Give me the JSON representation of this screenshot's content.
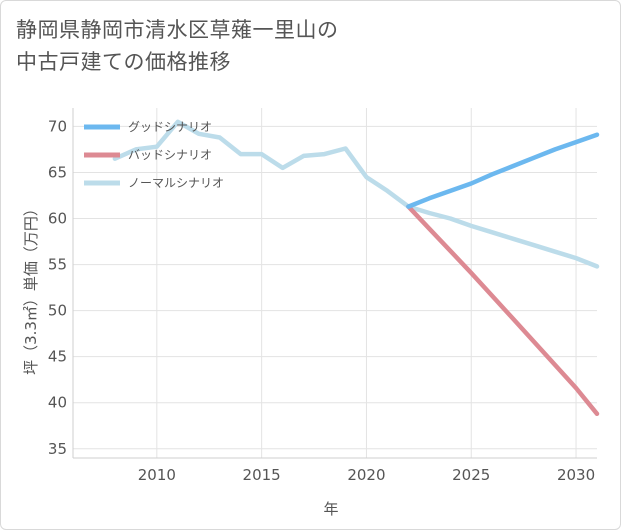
{
  "title_lines": [
    "静岡県静岡市清水区草薙一里山の",
    "中古戸建ての価格推移"
  ],
  "chart_data": {
    "type": "line",
    "xlabel": "年",
    "ylabel": "坪（3.3㎡）単価（万円）",
    "xlim": [
      2006,
      2031
    ],
    "ylim": [
      34,
      72
    ],
    "xticks": [
      2010,
      2015,
      2020,
      2025,
      2030
    ],
    "yticks": [
      35,
      40,
      45,
      50,
      55,
      60,
      65,
      70
    ],
    "grid": true,
    "legend_position": "top-left",
    "series": [
      {
        "name": "グッドシナリオ",
        "color": "#6cb8ef",
        "x": [
          2022,
          2023,
          2024,
          2025,
          2026,
          2027,
          2028,
          2029,
          2030,
          2031
        ],
        "y": [
          61.3,
          62.2,
          63.0,
          63.8,
          64.8,
          65.7,
          66.6,
          67.5,
          68.3,
          69.1
        ]
      },
      {
        "name": "バッドシナリオ",
        "color": "#dd8a93",
        "x": [
          2022,
          2023,
          2024,
          2025,
          2026,
          2027,
          2028,
          2029,
          2030,
          2031
        ],
        "y": [
          61.3,
          58.9,
          56.5,
          54.1,
          51.6,
          49.1,
          46.6,
          44.1,
          41.6,
          38.8
        ]
      },
      {
        "name": "ノーマルシナリオ",
        "color": "#bcdcea",
        "x": [
          2008,
          2009,
          2010,
          2011,
          2012,
          2013,
          2014,
          2015,
          2016,
          2017,
          2018,
          2019,
          2020,
          2021,
          2022,
          2023,
          2024,
          2025,
          2026,
          2027,
          2028,
          2029,
          2030,
          2031
        ],
        "y": [
          66.5,
          67.5,
          67.8,
          70.5,
          69.2,
          68.8,
          67.0,
          67.0,
          65.5,
          66.8,
          67.0,
          67.6,
          64.5,
          63.0,
          61.3,
          60.6,
          60.0,
          59.2,
          58.5,
          57.8,
          57.1,
          56.4,
          55.7,
          54.8
        ]
      }
    ]
  }
}
